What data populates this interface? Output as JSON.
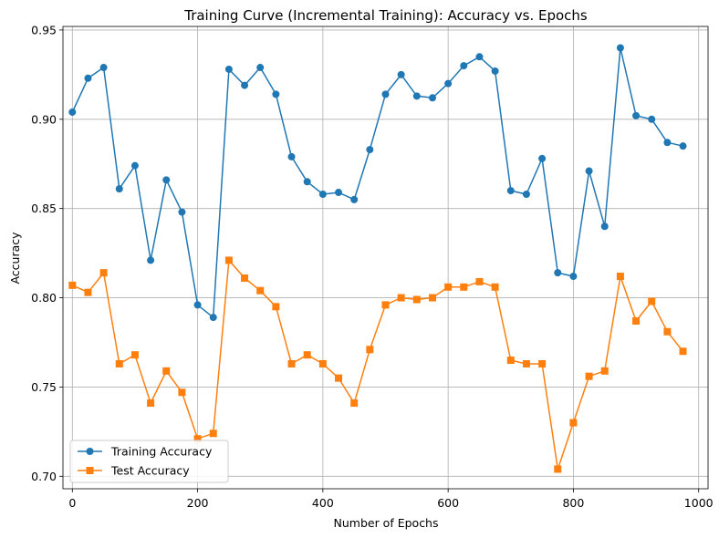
{
  "chart_data": {
    "type": "line",
    "title": "Training Curve (Incremental Training): Accuracy vs. Epochs",
    "xlabel": "Number of Epochs",
    "ylabel": "Accuracy",
    "xlim": [
      -15,
      1015
    ],
    "ylim": [
      0.693,
      0.952
    ],
    "xticks": [
      0,
      200,
      400,
      600,
      800,
      1000
    ],
    "yticks": [
      0.7,
      0.75,
      0.8,
      0.85,
      0.9,
      0.95
    ],
    "xtick_labels": [
      "0",
      "200",
      "400",
      "600",
      "800",
      "1000"
    ],
    "ytick_labels": [
      "0.70",
      "0.75",
      "0.80",
      "0.85",
      "0.90",
      "0.95"
    ],
    "grid": true,
    "legend_position": "lower-left",
    "x": [
      0,
      25,
      50,
      75,
      100,
      125,
      150,
      175,
      200,
      225,
      250,
      275,
      300,
      325,
      350,
      375,
      400,
      425,
      450,
      475,
      500,
      525,
      550,
      575,
      600,
      625,
      650,
      675,
      700,
      725,
      750,
      775,
      800,
      825,
      850,
      875,
      900,
      925,
      950,
      975
    ],
    "series": [
      {
        "name": "Training Accuracy",
        "color": "#1f77b4",
        "marker": "circle",
        "values": [
          0.904,
          0.923,
          0.929,
          0.861,
          0.874,
          0.821,
          0.866,
          0.848,
          0.796,
          0.789,
          0.928,
          0.919,
          0.929,
          0.914,
          0.879,
          0.865,
          0.858,
          0.859,
          0.855,
          0.883,
          0.914,
          0.925,
          0.913,
          0.912,
          0.92,
          0.93,
          0.935,
          0.927,
          0.86,
          0.858,
          0.878,
          0.814,
          0.812,
          0.871,
          0.84,
          0.94,
          0.902,
          0.9,
          0.887,
          0.885
        ]
      },
      {
        "name": "Test Accuracy",
        "color": "#ff7f0e",
        "marker": "square",
        "values": [
          0.807,
          0.803,
          0.814,
          0.763,
          0.768,
          0.741,
          0.759,
          0.747,
          0.721,
          0.724,
          0.821,
          0.811,
          0.804,
          0.795,
          0.763,
          0.768,
          0.763,
          0.755,
          0.741,
          0.771,
          0.796,
          0.8,
          0.799,
          0.8,
          0.806,
          0.806,
          0.809,
          0.806,
          0.765,
          0.763,
          0.763,
          0.704,
          0.73,
          0.756,
          0.759,
          0.812,
          0.787,
          0.798,
          0.781,
          0.77
        ]
      }
    ]
  }
}
